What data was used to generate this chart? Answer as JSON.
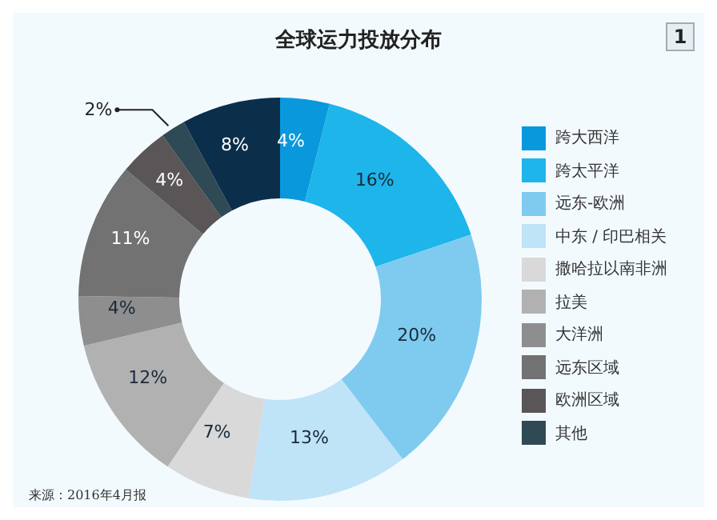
{
  "chart_data": {
    "type": "donut",
    "title": "全球运力投放分布",
    "categories": [
      "跨大西洋",
      "跨太平洋",
      "远东-欧洲",
      "中东 / 印巴相关",
      "撒哈拉以南非洲",
      "拉美",
      "大洋洲",
      "远东区域",
      "欧洲区域",
      "其他",
      null
    ],
    "values": [
      4,
      16,
      20,
      13,
      7,
      12,
      4,
      11,
      4,
      2,
      8
    ],
    "colors": [
      "#0a98dc",
      "#1db5ea",
      "#7fcbf0",
      "#bfe3f7",
      "#d9d9d9",
      "#b1b1b1",
      "#8e8e8e",
      "#737272",
      "#5a5556",
      "#2f4a55",
      "#0b2f4b"
    ],
    "value_labels": [
      "4%",
      "16%",
      "20%",
      "13%",
      "7%",
      "12%",
      "4%",
      "11%",
      "4%",
      "2%",
      "8%"
    ],
    "legend": "right",
    "annotations": [
      "1",
      "来源：2016年4月报"
    ]
  }
}
